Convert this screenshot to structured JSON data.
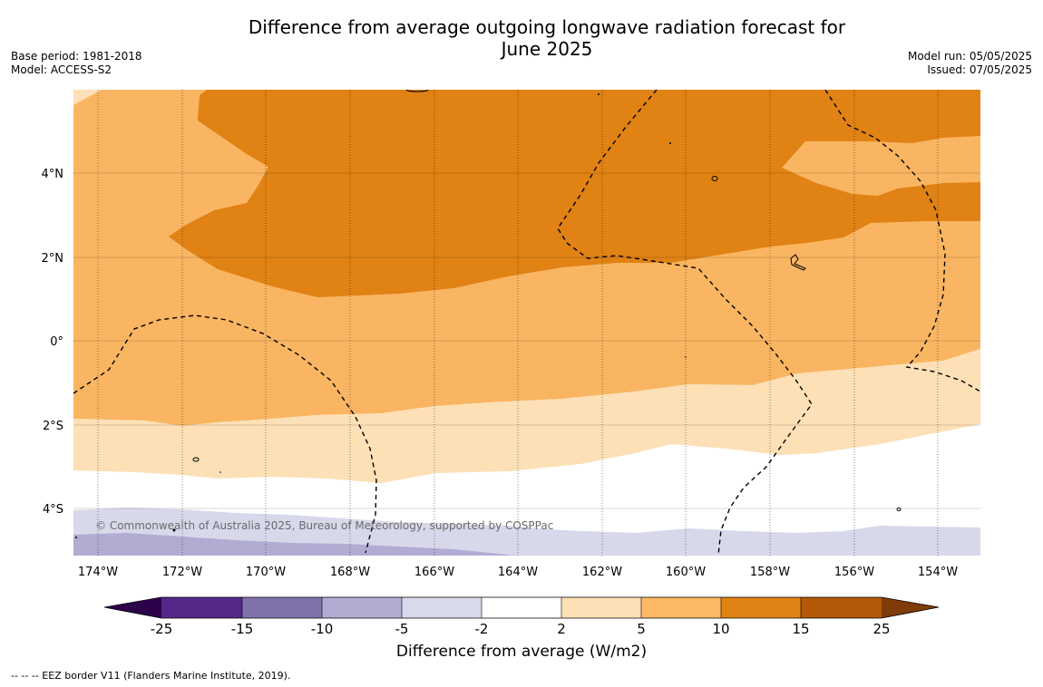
{
  "title_line1": "Difference from average outgoing longwave radiation forecast for",
  "title_line2": "June 2025",
  "base_period": "Base period: 1981-2018",
  "model": "Model: ACCESS-S2",
  "model_run": "Model run: 05/05/2025",
  "issued": "Issued: 07/05/2025",
  "copyright": "© Commonwealth of Australia 2025, Bureau of Meteorology, supported by COSPPac",
  "map": {
    "lon_labels": [
      "174°W",
      "172°W",
      "170°W",
      "168°W",
      "166°W",
      "164°W",
      "162°W",
      "160°W",
      "158°W",
      "156°W",
      "154°W"
    ],
    "lat_labels": [
      "4°N",
      "2°N",
      "0°",
      "2°S",
      "4°S"
    ],
    "lon_range": [
      "174.6°W",
      "152.9°W"
    ],
    "lat_range": [
      "5.2°S",
      "5.9°N"
    ],
    "eez_style": "dashed",
    "colors": {
      "pos_2_5": "#fde0b6",
      "pos_5_10": "#fab562",
      "pos_10_15": "#e08214",
      "neg_5_2": "#d8d8eb",
      "neg_10_5": "#b2abd2"
    }
  },
  "colorbar": {
    "ticks": [
      "-25",
      "-15",
      "-10",
      "-5",
      "-2",
      "2",
      "5",
      "10",
      "15",
      "25"
    ],
    "colors": [
      "#2d004b",
      "#542788",
      "#8073ac",
      "#b2abd2",
      "#d8daeb",
      "#ffffff",
      "#fee0b6",
      "#fdb863",
      "#e08214",
      "#b35806",
      "#7f3b08"
    ],
    "label": "Difference from average (W/m2)"
  },
  "footer": "--  --  -- EEZ border V11 (Flanders Marine Institute, 2019)."
}
